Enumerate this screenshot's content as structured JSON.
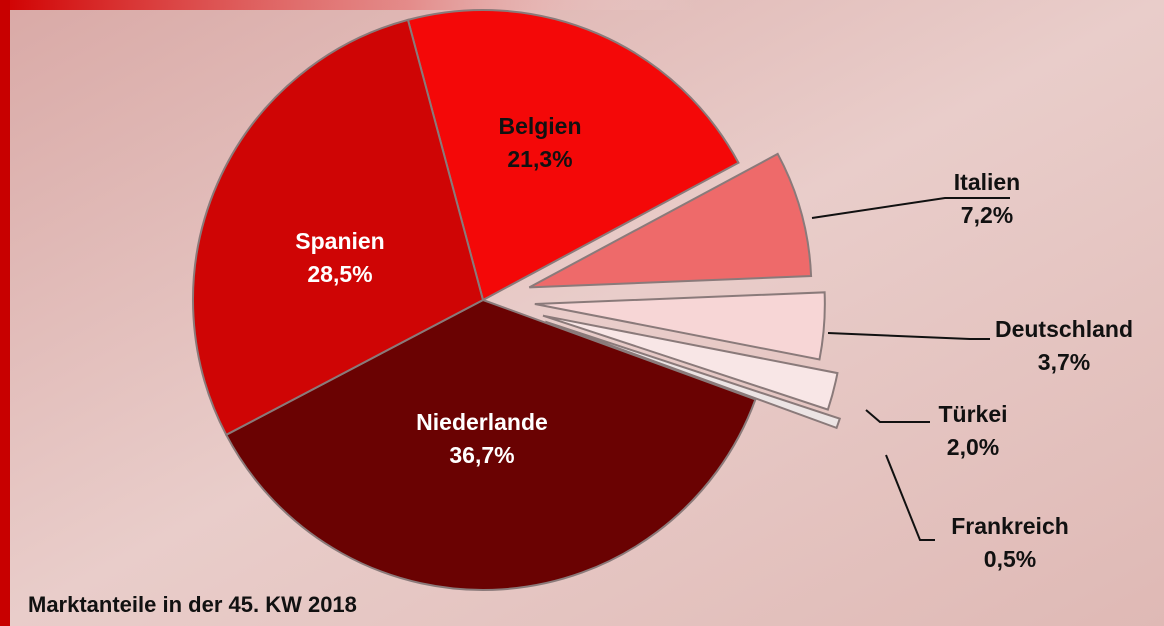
{
  "chart_data": {
    "type": "pie",
    "title": "Marktanteile in der 45. KW 2018",
    "categories": [
      "Belgien",
      "Italien",
      "Deutschland",
      "Türkei",
      "Frankreich",
      "Niederlande",
      "Spanien"
    ],
    "values": [
      21.3,
      7.2,
      3.7,
      2.0,
      0.5,
      36.7,
      28.5
    ],
    "value_labels": [
      "21,3%",
      "7,2%",
      "3,7%",
      "2,0%",
      "0,5%",
      "36,7%",
      "28,5%"
    ],
    "colors": [
      "#f40808",
      "#ee6a6a",
      "#f7d6d6",
      "#f8e6e6",
      "#ece4e4",
      "#6a0202",
      "#cf0505"
    ]
  }
}
